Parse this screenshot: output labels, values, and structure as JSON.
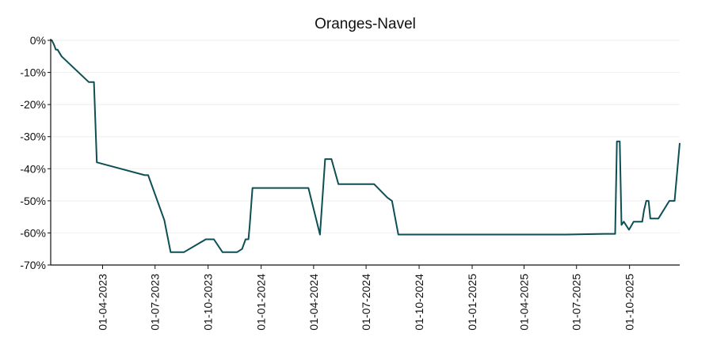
{
  "chart_data": {
    "type": "line",
    "title": "Oranges-Navel",
    "xlabel": "",
    "ylabel": "",
    "ylim": [
      -70,
      0
    ],
    "xlim": [
      "2023-01-01",
      "2025-12-27"
    ],
    "y_ticks": [
      0,
      -10,
      -20,
      -30,
      -40,
      -50,
      -60,
      -70
    ],
    "y_tick_labels": [
      "0%",
      "-10%",
      "-20%",
      "-30%",
      "-40%",
      "-50%",
      "-60%",
      "-70%"
    ],
    "x_ticks": [
      "2023-04-01",
      "2023-07-01",
      "2023-10-01",
      "2024-01-01",
      "2024-04-01",
      "2024-07-01",
      "2024-10-01",
      "2025-01-01",
      "2025-04-01",
      "2025-07-01",
      "2025-10-01"
    ],
    "x_tick_labels": [
      "01-04-2023",
      "01-07-2023",
      "01-10-2023",
      "01-01-2024",
      "01-04-2024",
      "01-07-2024",
      "01-10-2024",
      "01-01-2025",
      "01-04-2025",
      "01-07-2025",
      "01-10-2025"
    ],
    "grid": "horizontal",
    "line_color": "#0d4f54",
    "series": [
      {
        "x": [
          "2023-01-01",
          "2023-01-03",
          "2023-01-07",
          "2023-01-10",
          "2023-01-13",
          "2023-01-20",
          "2023-03-08",
          "2023-03-10",
          "2023-03-13",
          "2023-03-17",
          "2023-03-22",
          "2023-06-13",
          "2023-06-19",
          "2023-07-17",
          "2023-07-28",
          "2023-08-01",
          "2023-08-10",
          "2023-08-20",
          "2023-09-27",
          "2023-10-04",
          "2023-10-11",
          "2023-10-26",
          "2023-11-08",
          "2023-11-20",
          "2023-11-29",
          "2023-12-05",
          "2023-12-08",
          "2023-12-10",
          "2023-12-12",
          "2023-12-17",
          "2024-03-23",
          "2024-04-12",
          "2024-04-21",
          "2024-04-24",
          "2024-05-02",
          "2024-05-14",
          "2024-06-27",
          "2024-07-15",
          "2024-08-07",
          "2024-08-15",
          "2024-08-26",
          "2024-08-29",
          "2024-10-20",
          "2025-05-16",
          "2025-06-13",
          "2025-08-22",
          "2025-09-02",
          "2025-09-06",
          "2025-09-09",
          "2025-09-14",
          "2025-09-17",
          "2025-09-21",
          "2025-09-30",
          "2025-10-08",
          "2025-10-23",
          "2025-10-26",
          "2025-10-30",
          "2025-11-03",
          "2025-11-06",
          "2025-11-13",
          "2025-11-20",
          "2025-12-09",
          "2025-12-11",
          "2025-12-18",
          "2025-12-27"
        ],
        "y": [
          0,
          0,
          -1.5,
          -2.9,
          -2.9,
          -5,
          -13,
          -13,
          -13,
          -13,
          -38,
          -42,
          -42,
          -56,
          -66,
          -66,
          -66,
          -66,
          -62,
          -62,
          -62,
          -66,
          -66,
          -66,
          -65,
          -62,
          -62,
          -62,
          -58,
          -46,
          -46,
          -60.5,
          -37,
          -37,
          -37,
          -44.8,
          -44.8,
          -44.8,
          -49,
          -50,
          -60.5,
          -60.5,
          -60.5,
          -60.5,
          -60.5,
          -60.3,
          -60.3,
          -60.3,
          -31.5,
          -31.5,
          -57.5,
          -56.5,
          -59,
          -56.5,
          -56.5,
          -53,
          -50,
          -50,
          -55.5,
          -55.5,
          -55.5,
          -50,
          -50,
          -50,
          -32
        ]
      }
    ]
  }
}
